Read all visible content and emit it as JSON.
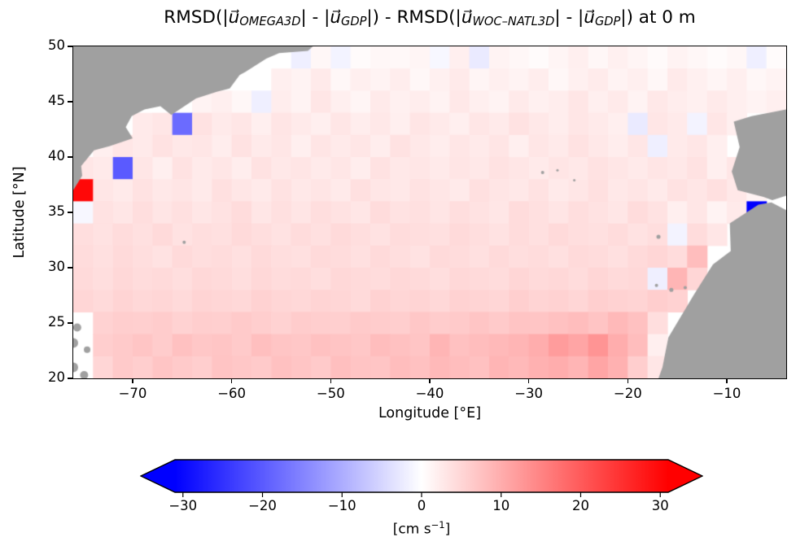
{
  "title": {
    "full": "RMSD(|u⃗_OMEGA3D| - |u⃗_GDP|) - RMSD(|u⃗_WOC–NATL3D| - |u⃗_GDP|) at 0 m",
    "parts": [
      {
        "text": "RMSD(|",
        "style": "n"
      },
      {
        "text": "u⃗",
        "style": "v"
      },
      {
        "text": "OMEGA3D",
        "style": "s"
      },
      {
        "text": "| - |",
        "style": "n"
      },
      {
        "text": "u⃗",
        "style": "v"
      },
      {
        "text": "GDP",
        "style": "s"
      },
      {
        "text": "|) - RMSD(|",
        "style": "n"
      },
      {
        "text": "u⃗",
        "style": "v"
      },
      {
        "text": "WOC–NATL3D",
        "style": "s"
      },
      {
        "text": "| - |",
        "style": "n"
      },
      {
        "text": "u⃗",
        "style": "v"
      },
      {
        "text": "GDP",
        "style": "s"
      },
      {
        "text": "|) at 0 m",
        "style": "n"
      }
    ]
  },
  "axes": {
    "xlabel": "Longitude [°E]",
    "ylabel": "Latitude [°N]",
    "xticks": {
      "values": [
        -70,
        -60,
        -50,
        -40,
        -30,
        -20,
        -10
      ],
      "labels": [
        "−70",
        "−60",
        "−50",
        "−40",
        "−30",
        "−20",
        "−10"
      ]
    },
    "yticks": {
      "values": [
        50,
        45,
        40,
        35,
        30,
        25,
        20
      ],
      "labels": [
        "50",
        "45",
        "40",
        "35",
        "30",
        "25",
        "20"
      ]
    }
  },
  "colorbar": {
    "ticks": {
      "values": [
        -30,
        -20,
        -10,
        0,
        10,
        20,
        30
      ],
      "labels": [
        "−30",
        "−20",
        "−10",
        "0",
        "10",
        "20",
        "30"
      ]
    },
    "label_parts": {
      "prefix": "[cm s",
      "sup": "−1",
      "suffix": "]"
    },
    "colors": {
      "low": "#0000ff",
      "mid": "#ffffff",
      "high": "#ff0000"
    },
    "extend": "both"
  },
  "chart_data": {
    "type": "heatmap",
    "title": "RMSD(|u⃗_OMEGA3D| - |u⃗_GDP|) - RMSD(|u⃗_WOC–NATL3D| - |u⃗_GDP|) at 0 m",
    "xlabel": "Longitude [°E]",
    "ylabel": "Latitude [°N]",
    "units": "cm s−1",
    "colormap": "bwr",
    "value_range": [
      -31,
      31
    ],
    "xlim": [
      -76,
      -4
    ],
    "ylim": [
      20,
      50
    ],
    "lon_start": -76,
    "lon_step": 2,
    "lat_start": 50,
    "lat_step": -2,
    "rows_order": "top-to-bottom (lat 50 to 20), null = land / no data",
    "grid": [
      [
        null,
        null,
        null,
        null,
        null,
        null,
        null,
        null,
        null,
        null,
        null,
        -2.0,
        1.0,
        -1.5,
        0.5,
        1.0,
        0.8,
        1.2,
        -1.0,
        2.0,
        -2.5,
        1.5,
        1.0,
        0.5,
        1.2,
        2.0,
        1.0,
        1.8,
        1.2,
        0.6,
        1.5,
        1.0,
        0.5,
        1.0,
        -2.0,
        0.5
      ],
      [
        null,
        null,
        null,
        null,
        null,
        null,
        null,
        null,
        null,
        null,
        2.0,
        1.5,
        2.5,
        1.0,
        2.0,
        1.5,
        2.2,
        1.0,
        1.8,
        2.5,
        1.2,
        2.0,
        1.5,
        2.2,
        1.0,
        1.8,
        2.4,
        1.5,
        2.0,
        1.0,
        2.5,
        1.8,
        1.2,
        2.0,
        1.0,
        1.5
      ],
      [
        null,
        null,
        null,
        null,
        null,
        null,
        1.5,
        2.0,
        1.0,
        -2.0,
        2.2,
        1.5,
        3.0,
        2.0,
        1.2,
        2.5,
        1.8,
        2.2,
        1.5,
        2.8,
        2.0,
        1.5,
        2.5,
        1.8,
        2.2,
        3.0,
        2.0,
        2.5,
        1.5,
        2.8,
        2.2,
        1.8,
        2.5,
        2.0,
        1.5,
        2.0
      ],
      [
        null,
        null,
        null,
        2.5,
        3.0,
        -18.0,
        3.5,
        2.5,
        3.0,
        2.0,
        3.2,
        2.5,
        2.0,
        3.0,
        2.2,
        2.8,
        2.0,
        3.2,
        2.5,
        2.0,
        3.0,
        2.5,
        3.5,
        2.8,
        2.2,
        3.0,
        2.5,
        2.0,
        -2.5,
        3.0,
        2.5,
        -1.5,
        3.0,
        2.0,
        null,
        null
      ],
      [
        null,
        2.0,
        3.0,
        2.5,
        3.5,
        2.8,
        3.0,
        2.2,
        3.5,
        2.5,
        3.0,
        2.0,
        3.2,
        2.5,
        3.0,
        2.2,
        3.5,
        2.8,
        2.2,
        3.0,
        2.5,
        3.2,
        2.0,
        3.0,
        2.5,
        3.5,
        2.8,
        2.2,
        3.0,
        -2.0,
        2.5,
        3.0,
        2.0,
        null,
        null,
        null
      ],
      [
        3.0,
        2.5,
        -20.0,
        3.0,
        2.0,
        3.5,
        2.5,
        3.0,
        2.2,
        3.5,
        2.8,
        3.2,
        2.5,
        3.0,
        2.2,
        3.5,
        2.8,
        3.0,
        2.5,
        3.2,
        2.8,
        3.5,
        3.0,
        2.5,
        3.2,
        2.8,
        3.5,
        3.0,
        2.5,
        3.2,
        2.8,
        3.5,
        2.0,
        3.0,
        null,
        null
      ],
      [
        30.0,
        3.0,
        2.5,
        3.5,
        2.8,
        3.2,
        2.5,
        3.8,
        3.0,
        2.5,
        3.5,
        2.8,
        3.2,
        2.5,
        3.8,
        3.0,
        2.8,
        3.5,
        3.0,
        2.5,
        3.8,
        3.2,
        2.8,
        3.5,
        2.5,
        3.0,
        3.8,
        2.8,
        3.2,
        2.5,
        3.5,
        3.0,
        3.8,
        2.8,
        1.5,
        null
      ],
      [
        -1.0,
        3.5,
        3.0,
        4.0,
        3.2,
        3.8,
        3.0,
        3.5,
        4.2,
        3.0,
        3.8,
        3.2,
        4.0,
        3.5,
        3.0,
        4.2,
        3.5,
        3.8,
        3.2,
        4.0,
        3.5,
        3.0,
        4.2,
        3.8,
        3.2,
        4.0,
        3.5,
        3.0,
        4.2,
        3.5,
        2.0,
        3.0,
        1.5,
        2.5,
        -32.0,
        null
      ],
      [
        4.0,
        3.5,
        4.2,
        3.8,
        4.5,
        3.5,
        4.0,
        3.8,
        4.5,
        4.0,
        3.5,
        4.2,
        3.8,
        4.5,
        4.0,
        3.5,
        4.2,
        4.0,
        3.8,
        4.5,
        4.0,
        3.5,
        4.2,
        3.8,
        4.5,
        4.0,
        3.8,
        4.2,
        3.5,
        4.0,
        -1.5,
        4.2,
        3.0,
        null,
        null,
        null
      ],
      [
        4.2,
        3.8,
        4.5,
        4.0,
        3.5,
        4.5,
        4.0,
        4.2,
        3.8,
        4.5,
        4.0,
        3.8,
        4.5,
        4.2,
        3.8,
        4.5,
        4.0,
        3.5,
        4.5,
        4.2,
        3.8,
        4.5,
        4.0,
        4.2,
        3.8,
        4.5,
        4.2,
        3.8,
        4.5,
        5.0,
        4.2,
        8.0,
        null,
        null,
        null,
        null
      ],
      [
        4.5,
        4.0,
        4.8,
        4.2,
        4.5,
        4.0,
        4.8,
        4.5,
        4.0,
        4.8,
        4.2,
        4.5,
        4.0,
        4.8,
        4.5,
        4.2,
        4.8,
        4.5,
        4.0,
        4.8,
        4.5,
        4.2,
        5.0,
        4.5,
        4.8,
        4.2,
        5.0,
        4.5,
        4.8,
        -2.0,
        9.0,
        5.0,
        null,
        null,
        null,
        null
      ],
      [
        5.0,
        4.5,
        5.2,
        4.8,
        5.0,
        4.5,
        5.2,
        5.0,
        4.8,
        5.5,
        5.0,
        4.8,
        5.2,
        5.0,
        4.5,
        5.5,
        5.0,
        5.2,
        4.8,
        5.5,
        5.2,
        5.0,
        5.8,
        5.2,
        5.5,
        5.0,
        5.8,
        5.5,
        5.2,
        6.0,
        5.5,
        null,
        null,
        null,
        null,
        null
      ],
      [
        null,
        5.5,
        6.0,
        5.8,
        6.2,
        5.5,
        6.0,
        5.8,
        6.5,
        6.0,
        5.5,
        6.2,
        6.0,
        5.8,
        6.5,
        6.2,
        6.0,
        6.8,
        6.2,
        6.5,
        7.0,
        6.5,
        7.2,
        7.0,
        7.5,
        8.0,
        7.2,
        8.5,
        7.5,
        4.0,
        null,
        null,
        null,
        null,
        null,
        null
      ],
      [
        null,
        6.0,
        6.5,
        7.0,
        6.2,
        7.5,
        6.8,
        7.0,
        6.5,
        7.8,
        7.0,
        6.8,
        7.5,
        7.2,
        6.8,
        8.0,
        7.5,
        7.0,
        9.0,
        7.5,
        8.0,
        8.5,
        9.0,
        10.0,
        12.0,
        11.0,
        13.0,
        10.0,
        8.0,
        2.0,
        null,
        null,
        null,
        null,
        null,
        null
      ],
      [
        null,
        5.0,
        6.5,
        6.0,
        7.0,
        6.5,
        6.0,
        7.2,
        6.8,
        6.5,
        7.5,
        7.0,
        6.5,
        7.8,
        7.2,
        7.0,
        8.0,
        7.5,
        8.5,
        8.0,
        7.5,
        9.0,
        8.5,
        9.5,
        10.0,
        9.0,
        11.0,
        9.5,
        6.0,
        3.0,
        null,
        null,
        null,
        null,
        null,
        null
      ]
    ],
    "land_color": "#a0a0a0",
    "land_polygons": [
      [
        [
          -76,
          50
        ],
        [
          -51.8,
          50
        ],
        [
          -52.3,
          49.6
        ],
        [
          -55.2,
          49.4
        ],
        [
          -56.5,
          48.9
        ],
        [
          -58.6,
          47.7
        ],
        [
          -59.2,
          47.4
        ],
        [
          -60.2,
          46.2
        ],
        [
          -61.5,
          45.9
        ],
        [
          -63.6,
          45.3
        ],
        [
          -66.1,
          43.8
        ],
        [
          -67.2,
          44.6
        ],
        [
          -68.8,
          44.3
        ],
        [
          -70.1,
          43.7
        ],
        [
          -70.7,
          42.7
        ],
        [
          -70.0,
          41.7
        ],
        [
          -72.3,
          41.0
        ],
        [
          -73.9,
          40.6
        ],
        [
          -75.2,
          39.2
        ],
        [
          -75.1,
          38.3
        ],
        [
          -76,
          37.0
        ]
      ],
      [
        [
          -4,
          44.3
        ],
        [
          -7.5,
          43.7
        ],
        [
          -9.3,
          43.2
        ],
        [
          -8.7,
          40.9
        ],
        [
          -9.5,
          38.7
        ],
        [
          -8.9,
          37.0
        ],
        [
          -6.3,
          36.4
        ],
        [
          -5.4,
          36.1
        ],
        [
          -4,
          36.5
        ]
      ],
      [
        [
          -4,
          35.2
        ],
        [
          -5.5,
          35.9
        ],
        [
          -6.8,
          35.7
        ],
        [
          -9.7,
          34.0
        ],
        [
          -9.6,
          31.5
        ],
        [
          -11.4,
          30.3
        ],
        [
          -13.3,
          27.6
        ],
        [
          -15.9,
          23.7
        ],
        [
          -16.5,
          21.0
        ],
        [
          -16.9,
          20.0
        ],
        [
          -4,
          20.0
        ]
      ]
    ],
    "land_dots": [
      {
        "lon": -64.8,
        "lat": 32.3,
        "r": 2
      },
      {
        "lon": -28.6,
        "lat": 38.6,
        "r": 2
      },
      {
        "lon": -27.1,
        "lat": 38.8,
        "r": 1.5
      },
      {
        "lon": -25.4,
        "lat": 37.9,
        "r": 1.5
      },
      {
        "lon": -16.9,
        "lat": 32.8,
        "r": 2.5
      },
      {
        "lon": -17.1,
        "lat": 28.4,
        "r": 2
      },
      {
        "lon": -15.6,
        "lat": 28.0,
        "r": 2.5
      },
      {
        "lon": -14.2,
        "lat": 28.2,
        "r": 2
      },
      {
        "lon": -75.6,
        "lat": 24.6,
        "r": 5
      },
      {
        "lon": -76.0,
        "lat": 23.2,
        "r": 6
      },
      {
        "lon": -74.6,
        "lat": 22.6,
        "r": 4
      },
      {
        "lon": -76.0,
        "lat": 21.0,
        "r": 6
      },
      {
        "lon": -74.9,
        "lat": 20.3,
        "r": 5
      }
    ]
  }
}
